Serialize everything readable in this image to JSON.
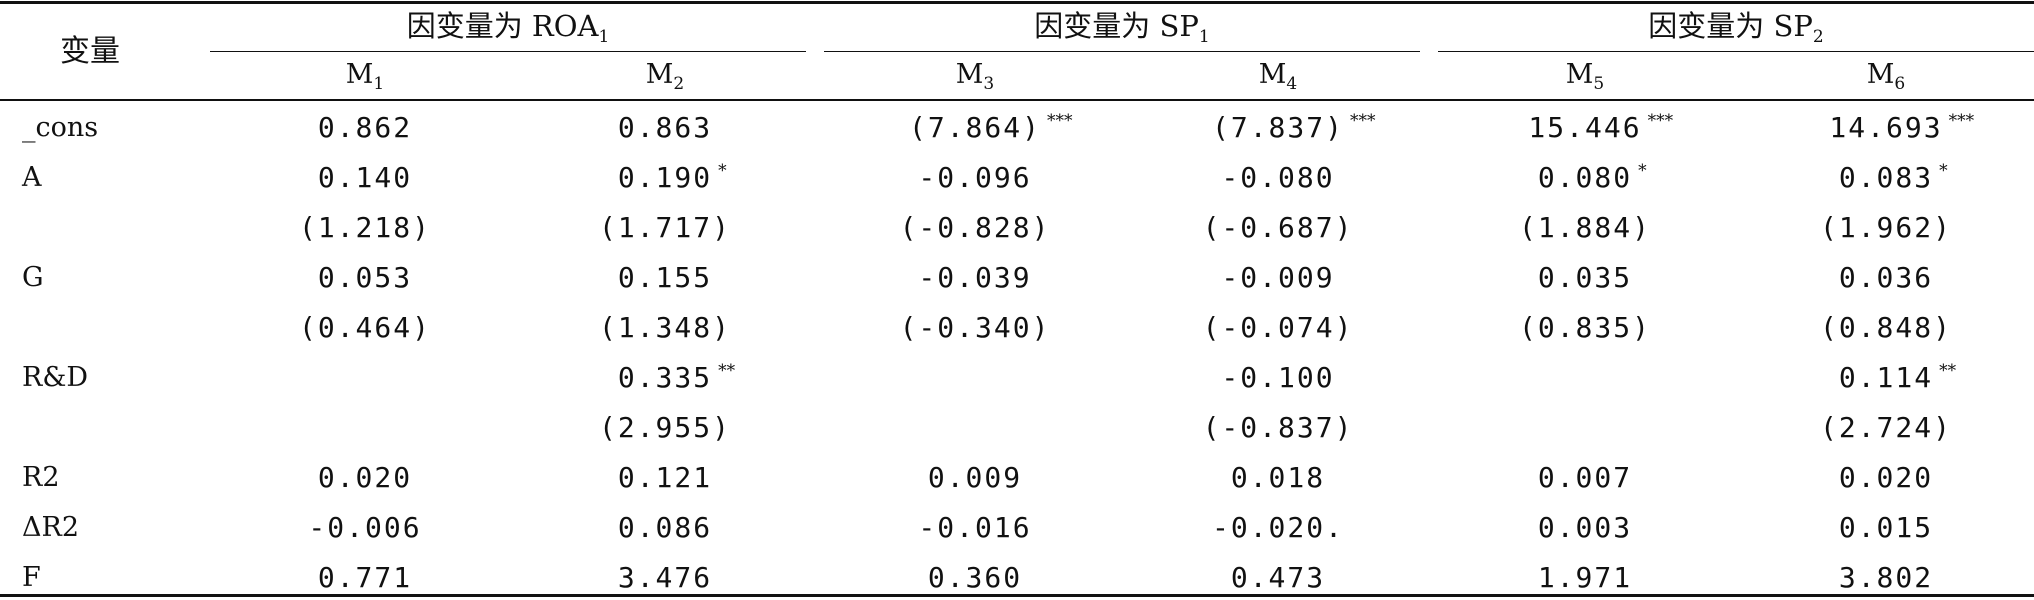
{
  "header": {
    "variable_label": "变量",
    "groups": [
      {
        "prefix": "因变量为 ROA",
        "sub": "1"
      },
      {
        "prefix": "因变量为 SP",
        "sub": "1"
      },
      {
        "prefix": "因变量为 SP",
        "sub": "2"
      }
    ],
    "models": [
      {
        "base": "M",
        "sub": "1"
      },
      {
        "base": "M",
        "sub": "2"
      },
      {
        "base": "M",
        "sub": "3"
      },
      {
        "base": "M",
        "sub": "4"
      },
      {
        "base": "M",
        "sub": "5"
      },
      {
        "base": "M",
        "sub": "6"
      }
    ]
  },
  "rows": [
    {
      "label": "_cons",
      "cells": [
        {
          "v": "0.862",
          "s": ""
        },
        {
          "v": "0.863",
          "s": ""
        },
        {
          "v": "(7.864)",
          "s": "***"
        },
        {
          "v": "(7.837)",
          "s": "***"
        },
        {
          "v": "15.446",
          "s": "***"
        },
        {
          "v": "14.693",
          "s": "***"
        }
      ]
    },
    {
      "label": "A",
      "cells": [
        {
          "v": "0.140",
          "s": ""
        },
        {
          "v": "0.190",
          "s": "*"
        },
        {
          "v": "-0.096",
          "s": ""
        },
        {
          "v": "-0.080",
          "s": ""
        },
        {
          "v": "0.080",
          "s": "*"
        },
        {
          "v": "0.083",
          "s": "*"
        }
      ]
    },
    {
      "label": "",
      "cells": [
        {
          "v": "(1.218)",
          "s": ""
        },
        {
          "v": "(1.717)",
          "s": ""
        },
        {
          "v": "(-0.828)",
          "s": ""
        },
        {
          "v": "(-0.687)",
          "s": ""
        },
        {
          "v": "(1.884)",
          "s": ""
        },
        {
          "v": "(1.962)",
          "s": ""
        }
      ]
    },
    {
      "label": "G",
      "cells": [
        {
          "v": "0.053",
          "s": ""
        },
        {
          "v": "0.155",
          "s": ""
        },
        {
          "v": "-0.039",
          "s": ""
        },
        {
          "v": "-0.009",
          "s": ""
        },
        {
          "v": "0.035",
          "s": ""
        },
        {
          "v": "0.036",
          "s": ""
        }
      ]
    },
    {
      "label": "",
      "cells": [
        {
          "v": "(0.464)",
          "s": ""
        },
        {
          "v": "(1.348)",
          "s": ""
        },
        {
          "v": "(-0.340)",
          "s": ""
        },
        {
          "v": "(-0.074)",
          "s": ""
        },
        {
          "v": "(0.835)",
          "s": ""
        },
        {
          "v": "(0.848)",
          "s": ""
        }
      ]
    },
    {
      "label": "R&D",
      "cells": [
        {
          "v": "",
          "s": ""
        },
        {
          "v": "0.335",
          "s": "**"
        },
        {
          "v": "",
          "s": ""
        },
        {
          "v": "-0.100",
          "s": ""
        },
        {
          "v": "",
          "s": ""
        },
        {
          "v": "0.114",
          "s": "**"
        }
      ]
    },
    {
      "label": "",
      "cells": [
        {
          "v": "",
          "s": ""
        },
        {
          "v": "(2.955)",
          "s": ""
        },
        {
          "v": "",
          "s": ""
        },
        {
          "v": "(-0.837)",
          "s": ""
        },
        {
          "v": "",
          "s": ""
        },
        {
          "v": "(2.724)",
          "s": ""
        }
      ]
    },
    {
      "label": "R2",
      "cells": [
        {
          "v": "0.020",
          "s": ""
        },
        {
          "v": "0.121",
          "s": ""
        },
        {
          "v": "0.009",
          "s": ""
        },
        {
          "v": "0.018",
          "s": ""
        },
        {
          "v": "0.007",
          "s": ""
        },
        {
          "v": "0.020",
          "s": ""
        }
      ]
    },
    {
      "label": "ΔR2",
      "cells": [
        {
          "v": "-0.006",
          "s": ""
        },
        {
          "v": "0.086",
          "s": ""
        },
        {
          "v": "-0.016",
          "s": ""
        },
        {
          "v": "-0.020.",
          "s": ""
        },
        {
          "v": "0.003",
          "s": ""
        },
        {
          "v": "0.015",
          "s": ""
        }
      ]
    },
    {
      "label": "F",
      "cells": [
        {
          "v": "0.771",
          "s": ""
        },
        {
          "v": "3.476",
          "s": ""
        },
        {
          "v": "0.360",
          "s": ""
        },
        {
          "v": "0.473",
          "s": ""
        },
        {
          "v": "1.971",
          "s": ""
        },
        {
          "v": "3.802",
          "s": ""
        }
      ]
    }
  ]
}
